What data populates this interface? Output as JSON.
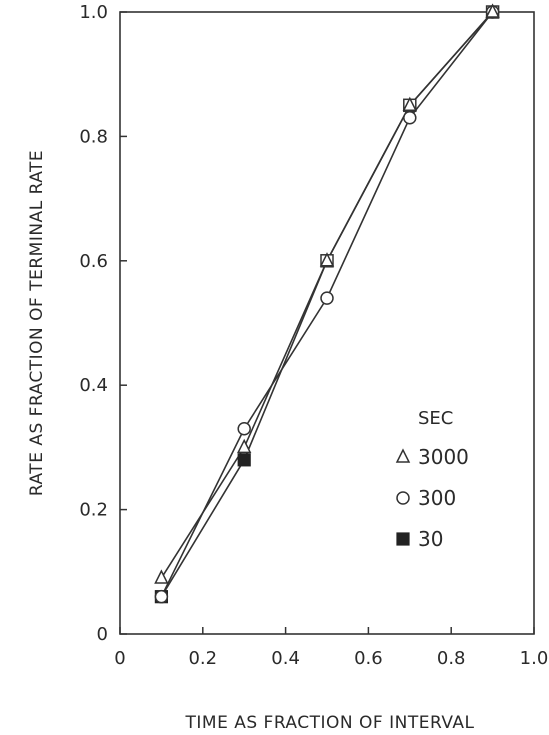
{
  "chart_data": {
    "type": "line",
    "title": "",
    "xlabel": "TIME AS FRACTION OF INTERVAL",
    "ylabel": "RATE AS FRACTION OF TERMINAL RATE",
    "xlim": [
      0,
      1.0
    ],
    "ylim": [
      0,
      1.0
    ],
    "xticks": [
      "0",
      "0.2",
      "0.4",
      "0.6",
      "0.8",
      "1.0"
    ],
    "yticks": [
      "0",
      "0.2",
      "0.4",
      "0.6",
      "0.8",
      "1.0"
    ],
    "grid": false,
    "legend": {
      "title": "SEC",
      "placement": "lower-right"
    },
    "series": [
      {
        "name": "3000",
        "marker": "triangle",
        "x": [
          0.1,
          0.3,
          0.5,
          0.7,
          0.9
        ],
        "y": [
          0.09,
          0.3,
          0.6,
          0.85,
          1.0
        ]
      },
      {
        "name": "300",
        "marker": "circle",
        "x": [
          0.1,
          0.3,
          0.5,
          0.7,
          0.9
        ],
        "y": [
          0.06,
          0.33,
          0.54,
          0.83,
          1.0
        ]
      },
      {
        "name": "30",
        "marker": "square",
        "x": [
          0.1,
          0.3,
          0.5,
          0.7,
          0.9
        ],
        "y": [
          0.06,
          0.28,
          0.6,
          0.85,
          1.0
        ]
      }
    ]
  }
}
